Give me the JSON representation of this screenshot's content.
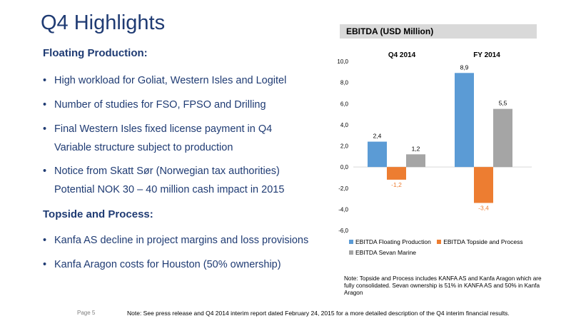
{
  "title": "Q4 Highlights",
  "floating": {
    "heading": "Floating Production:",
    "bullets": [
      {
        "line1": "High workload for Goliat, Western Isles and Logitel"
      },
      {
        "line1": "Number of studies for FSO, FPSO and Drilling"
      },
      {
        "line1": "Final Western Isles fixed license payment in Q4",
        "line2": "Variable structure subject to production"
      },
      {
        "line1": "Notice from Skatt Sør (Norwegian tax authorities)",
        "line2": "Potential NOK 30 – 40 million cash impact in 2015"
      }
    ]
  },
  "topside": {
    "heading": "Topside and Process:",
    "bullets": [
      {
        "line1": "Kanfa AS decline in project margins and loss provisions"
      },
      {
        "line1": "Kanfa Aragon costs for Houston (50% ownership)"
      }
    ]
  },
  "chart_header": "EBITDA (USD Million)",
  "colors": {
    "title": "#1f3b73",
    "floating_production": "#5b9bd5",
    "topside_process": "#ed7d31",
    "sevan_marine": "#a5a5a5"
  },
  "chart_data": {
    "type": "bar",
    "categories": [
      "Q4 2014",
      "FY 2014"
    ],
    "series": [
      {
        "name": "EBITDA Floating Production",
        "values": [
          2.4,
          8.9
        ],
        "labels": [
          "2,4",
          "8,9"
        ]
      },
      {
        "name": "EBITDA Topside and Process",
        "values": [
          -1.2,
          -3.4
        ],
        "labels": [
          "-1,2",
          "-3,4"
        ]
      },
      {
        "name": "EBITDA Sevan Marine",
        "values": [
          1.2,
          5.5
        ],
        "labels": [
          "1,2",
          "5,5"
        ]
      }
    ],
    "ylim": [
      -6,
      10
    ],
    "yticks": [
      {
        "value": 10,
        "label": "10,0"
      },
      {
        "value": 8,
        "label": "8,0"
      },
      {
        "value": 6,
        "label": "6,0"
      },
      {
        "value": 4,
        "label": "4,0"
      },
      {
        "value": 2,
        "label": "2,0"
      },
      {
        "value": 0,
        "label": "0,0"
      },
      {
        "value": -2,
        "label": "-2,0"
      },
      {
        "value": -4,
        "label": "-4,0"
      },
      {
        "value": -6,
        "label": "-6,0"
      }
    ],
    "legend_position": "bottom",
    "grid": false
  },
  "chart_note": "Note: Topside and Process includes KANFA AS and Kanfa Aragon which are fully consolidated. Sevan ownership is 51% in KANFA AS and 50% in Kanfa Aragon",
  "page_label": "Page 5",
  "footnote": "Note: See press release and Q4 2014 interim report dated February 24, 2015 for a more detailed description of the Q4 interim financial results."
}
